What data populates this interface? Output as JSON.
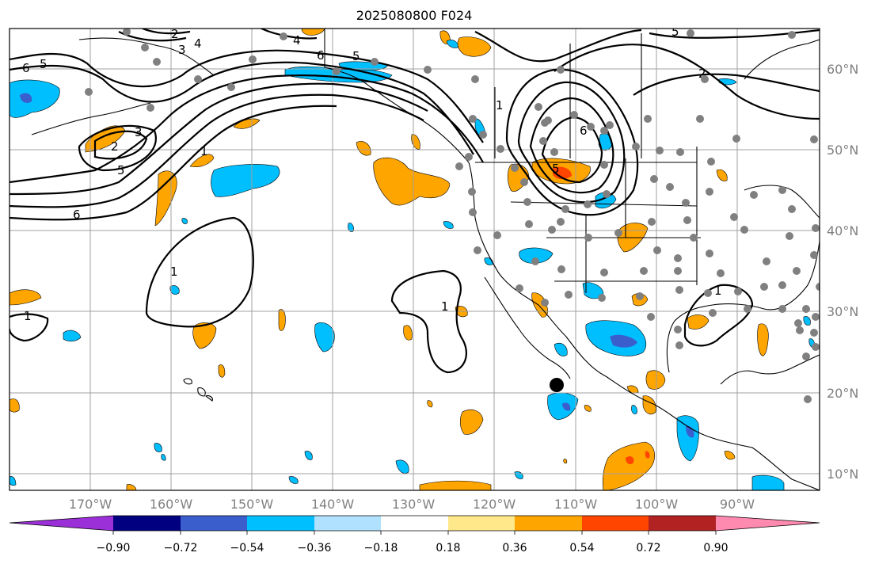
{
  "title": "2025080800 F024",
  "map": {
    "lon_labels": [
      "170°W",
      "160°W",
      "150°W",
      "140°W",
      "130°W",
      "120°W",
      "110°W",
      "100°W",
      "90°W"
    ],
    "lat_labels": [
      "60°N",
      "50°N",
      "40°N",
      "30°N",
      "20°N",
      "10°N"
    ],
    "gridline_color": "#a0a0a0",
    "coastline_color": "#000000",
    "station_marker_color": "#808080",
    "highlight_marker_color": "#000000"
  },
  "contours": {
    "labels": [
      "6",
      "5",
      "2",
      "3",
      "4",
      "6",
      "5",
      "2",
      "1",
      "6",
      "5",
      "4",
      "3",
      "2",
      "5",
      "6",
      "5",
      "1",
      "1",
      "1",
      "1",
      "1"
    ]
  },
  "colorbar": {
    "tick_labels": [
      "−0.90",
      "−0.72",
      "−0.54",
      "−0.36",
      "−0.18",
      "0.18",
      "0.36",
      "0.54",
      "0.72",
      "0.90"
    ],
    "bins": [
      {
        "color": "#9b30d9"
      },
      {
        "color": "#000080"
      },
      {
        "color": "#3a5fcd"
      },
      {
        "color": "#00bfff"
      },
      {
        "color": "#b0e2ff"
      },
      {
        "color": "#ffffff"
      },
      {
        "color": "#ffe88a"
      },
      {
        "color": "#ffa500"
      },
      {
        "color": "#ff4500"
      },
      {
        "color": "#b22222"
      },
      {
        "color": "#ff8ab0"
      }
    ]
  }
}
